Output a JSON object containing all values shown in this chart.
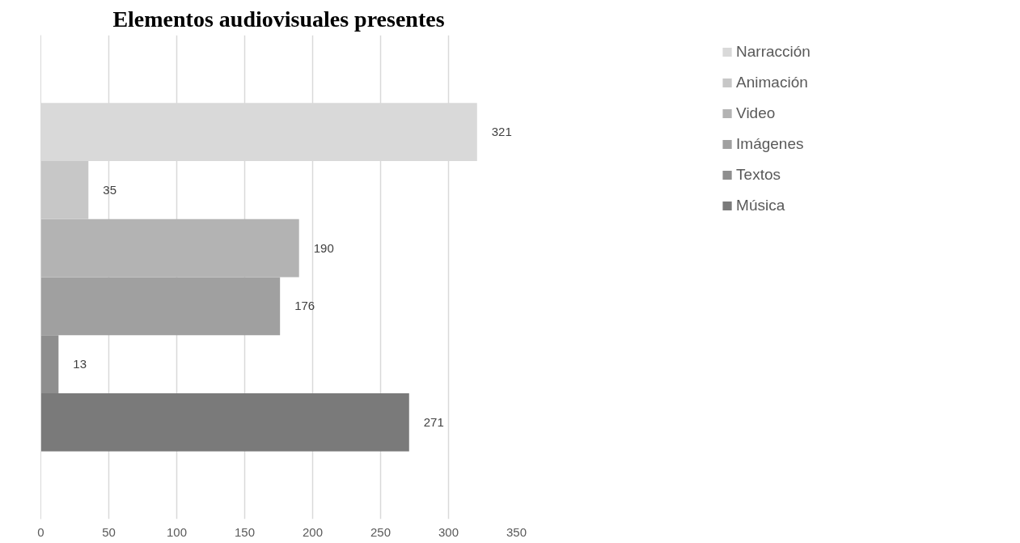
{
  "chart_data": {
    "type": "bar",
    "title": "Elementos audiovisuales presentes",
    "orientation": "horizontal",
    "categories": [
      null
    ],
    "series": [
      {
        "name": "Música",
        "color": "#7a7a7a",
        "values": [
          271
        ]
      },
      {
        "name": "Textos",
        "color": "#8e8e8e",
        "values": [
          13
        ]
      },
      {
        "name": "Imágenes",
        "color": "#a0a0a0",
        "values": [
          176
        ]
      },
      {
        "name": "Video",
        "color": "#b3b3b3",
        "values": [
          190
        ]
      },
      {
        "name": "Animación",
        "color": "#c7c7c7",
        "values": [
          35
        ]
      },
      {
        "name": "Narracción",
        "color": "#d9d9d9",
        "values": [
          321
        ]
      }
    ],
    "xlim": [
      0,
      350
    ],
    "xticks": [
      0,
      50,
      100,
      150,
      200,
      250,
      300,
      350
    ],
    "grid": "x",
    "legend": "right",
    "data_labels": true
  }
}
